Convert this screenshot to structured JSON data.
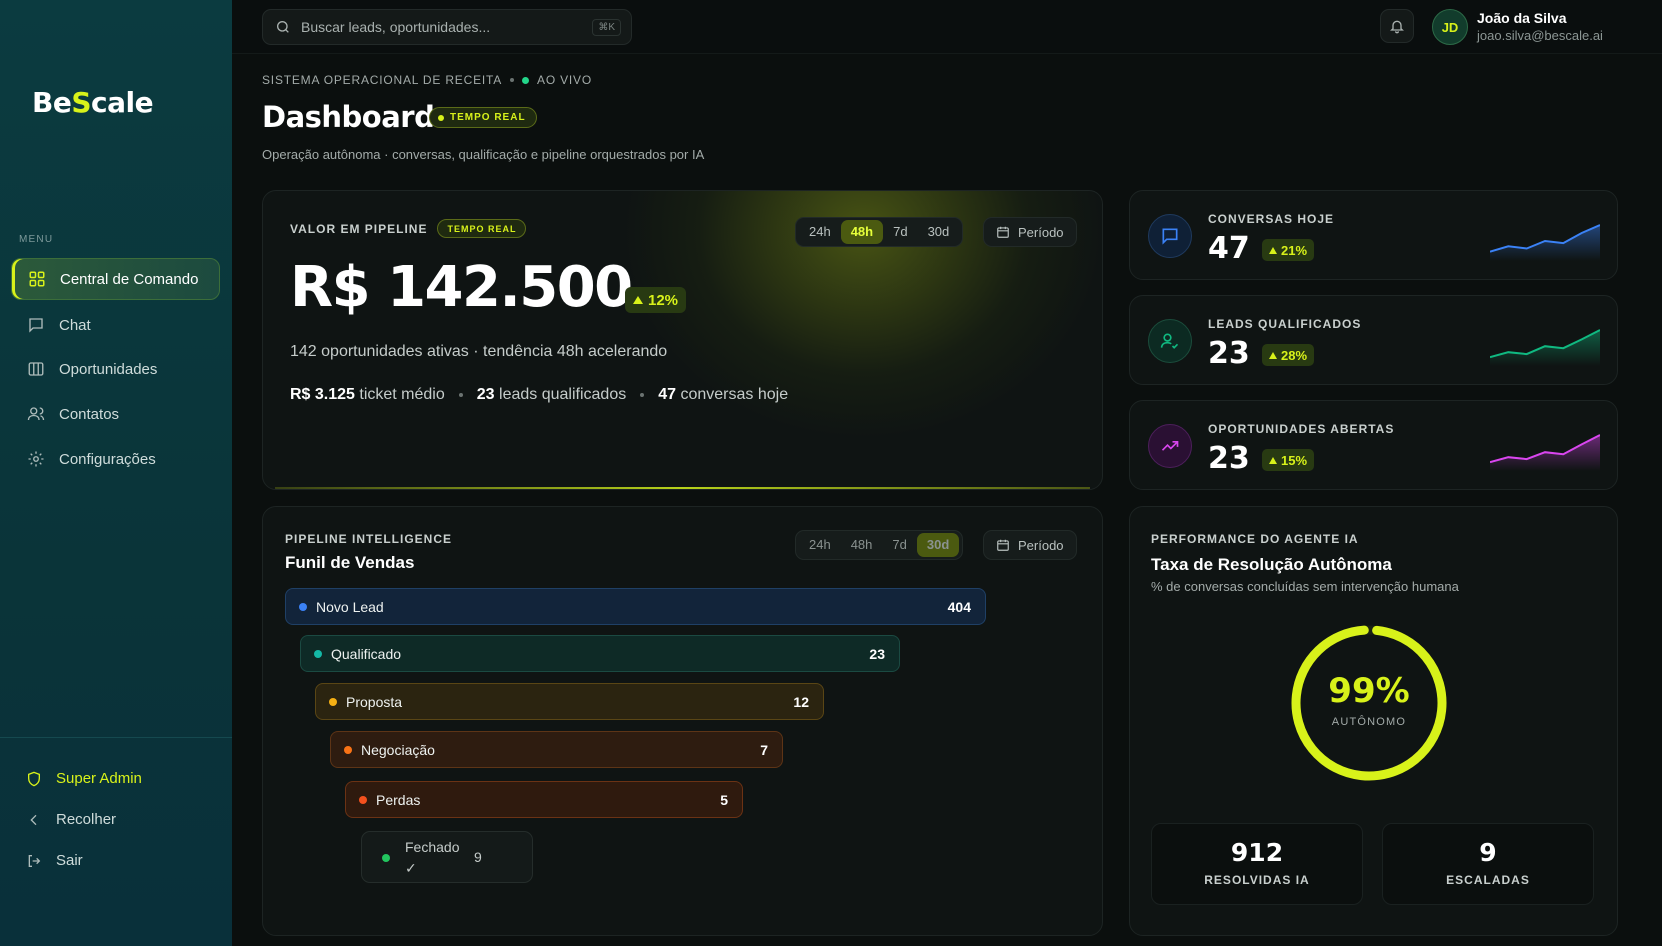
{
  "brand": {
    "name_pre": "Be",
    "name_s": "S",
    "name_post": "cale"
  },
  "sidebar": {
    "menu_label": "MENU",
    "items": [
      {
        "label": "Central de Comando",
        "icon": "grid-icon",
        "active": true
      },
      {
        "label": "Chat",
        "icon": "chat-icon"
      },
      {
        "label": "Oportunidades",
        "icon": "columns-icon"
      },
      {
        "label": "Contatos",
        "icon": "users-icon"
      },
      {
        "label": "Configurações",
        "icon": "gear-icon"
      }
    ],
    "bottom": [
      {
        "label": "Super Admin",
        "icon": "shield-icon"
      },
      {
        "label": "Recolher",
        "icon": "chevron-left-icon"
      },
      {
        "label": "Sair",
        "icon": "logout-icon"
      }
    ]
  },
  "topbar": {
    "search_placeholder": "Buscar leads, oportunidades...",
    "shortcut": "⌘K",
    "user": {
      "initials": "JD",
      "name": "João da Silva",
      "email": "joao.silva@bescale.ai"
    }
  },
  "header": {
    "eyebrow": "SISTEMA OPERACIONAL DE RECEITA",
    "live": "AO VIVO",
    "title": "Dashboard",
    "badge": "TEMPO REAL",
    "subtitle": "Operação autônoma · conversas, qualificação e pipeline orquestrados por IA"
  },
  "pipeline": {
    "label": "VALOR EM PIPELINE",
    "badge": "TEMPO REAL",
    "ranges": [
      "24h",
      "48h",
      "7d",
      "30d"
    ],
    "selected_range": "48h",
    "period_label": "Período",
    "value": "R$ 142.500",
    "change": "12%",
    "summary": "142 oportunidades ativas · tendência 48h acelerando",
    "stats": [
      {
        "value": "R$ 3.125",
        "label": "ticket médio"
      },
      {
        "value": "23",
        "label": "leads qualificados"
      },
      {
        "value": "47",
        "label": "conversas hoje"
      }
    ]
  },
  "kpis": [
    {
      "label": "CONVERSAS HOJE",
      "value": "47",
      "change": "21%",
      "icon": "chat-icon",
      "color": "#3b82f6",
      "trend": [
        3,
        4,
        3.6,
        5,
        4.6,
        6.5,
        8
      ]
    },
    {
      "label": "LEADS QUALIFICADOS",
      "value": "23",
      "change": "28%",
      "icon": "user-check-icon",
      "color": "#10b981",
      "trend": [
        3,
        4,
        3.6,
        5.2,
        4.8,
        6.6,
        8.5
      ]
    },
    {
      "label": "OPORTUNIDADES ABERTAS",
      "value": "23",
      "change": "15%",
      "icon": "trending-up-icon",
      "color": "#d946ef",
      "trend": [
        2,
        3,
        2.6,
        4,
        3.6,
        5.6,
        7.5
      ]
    }
  ],
  "funnel": {
    "eyebrow": "PIPELINE INTELLIGENCE",
    "title": "Funil de Vendas",
    "ranges": [
      "24h",
      "48h",
      "7d",
      "30d"
    ],
    "selected_range": "30d",
    "period_label": "Período",
    "stages": [
      {
        "label": "Novo Lead",
        "count": "404",
        "color": "#3b82f6"
      },
      {
        "label": "Qualificado",
        "count": "23",
        "color": "#14b8a6"
      },
      {
        "label": "Proposta",
        "count": "12",
        "color": "#f5b014"
      },
      {
        "label": "Negociação",
        "count": "7",
        "color": "#f97316"
      },
      {
        "label": "Perdas",
        "count": "5",
        "color": "#f4511e"
      }
    ],
    "closed": {
      "label": "Fechado",
      "check": "✓",
      "count": "9",
      "color": "#22c55e"
    }
  },
  "performance": {
    "eyebrow": "PERFORMANCE DO AGENTE IA",
    "title": "Taxa de Resolução Autônoma",
    "subtitle": "% de conversas concluídas sem intervenção humana",
    "rate": "99%",
    "rate_value": 99,
    "rate_label": "AUTÔNOMO",
    "resolved": {
      "value": "912",
      "label": "RESOLVIDAS IA"
    },
    "escalated": {
      "value": "9",
      "label": "ESCALADAS"
    }
  }
}
